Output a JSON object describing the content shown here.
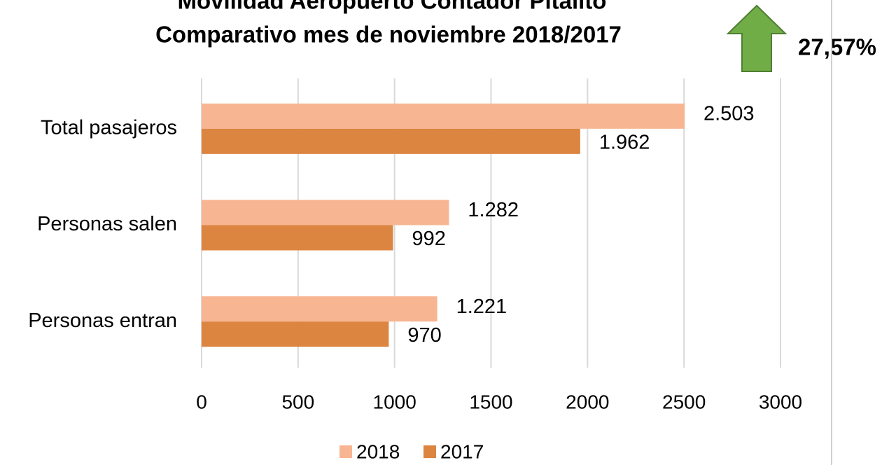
{
  "chart_data": {
    "type": "barh",
    "title": [
      "Movilidad Aeropuerto Contador Pitalito",
      "Comparativo mes de noviembre 2018/2017"
    ],
    "annotation": "27,57%",
    "categories": [
      "Total pasajeros",
      "Personas salen",
      "Personas entran"
    ],
    "series": [
      {
        "name": "2018",
        "color": "#f8b592",
        "values": [
          2503,
          1282,
          1221
        ],
        "value_labels": [
          "2.503",
          "1.282",
          "1.221"
        ]
      },
      {
        "name": "2017",
        "color": "#dc8540",
        "values": [
          1962,
          992,
          970
        ],
        "value_labels": [
          "1.962",
          "992",
          "970"
        ]
      }
    ],
    "xlim": [
      0,
      3000
    ],
    "xticks": [
      0,
      500,
      1000,
      1500,
      2000,
      2500,
      3000
    ],
    "grid": true
  }
}
